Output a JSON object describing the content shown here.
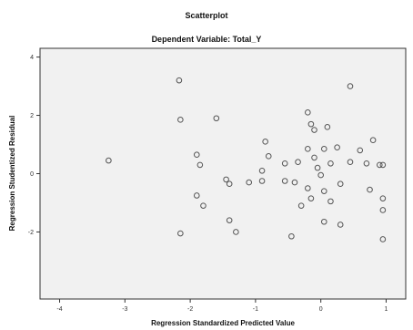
{
  "chart_data": {
    "type": "scatter",
    "title": "Scatterplot",
    "subtitle": "Dependent Variable: Total_Y",
    "xlabel": "Regression Standardized Predicted Value",
    "ylabel": "Regression Studentized Residual",
    "xlim": [
      -4.3,
      1.3
    ],
    "ylim": [
      -4.3,
      4.3
    ],
    "xticks": [
      -4,
      -3,
      -2,
      -1,
      0,
      1
    ],
    "yticks": [
      -2,
      0,
      2,
      4
    ],
    "grid": false,
    "legend": "none",
    "colors": {
      "plot_background": "#f1f1f1",
      "point": "#555555",
      "axis": "#333333"
    },
    "points": [
      {
        "x": -3.25,
        "y": 0.45
      },
      {
        "x": -2.17,
        "y": 3.2
      },
      {
        "x": -2.15,
        "y": 1.85
      },
      {
        "x": -2.15,
        "y": -2.05
      },
      {
        "x": -1.9,
        "y": 0.65
      },
      {
        "x": -1.85,
        "y": 0.3
      },
      {
        "x": -1.9,
        "y": -0.75
      },
      {
        "x": -1.8,
        "y": -1.1
      },
      {
        "x": -1.6,
        "y": 1.9
      },
      {
        "x": -1.45,
        "y": -0.2
      },
      {
        "x": -1.4,
        "y": -0.35
      },
      {
        "x": -1.4,
        "y": -1.6
      },
      {
        "x": -1.3,
        "y": -2.0
      },
      {
        "x": -1.1,
        "y": -0.3
      },
      {
        "x": -0.9,
        "y": 0.1
      },
      {
        "x": -0.85,
        "y": 1.1
      },
      {
        "x": -0.9,
        "y": -0.25
      },
      {
        "x": -0.8,
        "y": 0.6
      },
      {
        "x": -0.55,
        "y": 0.35
      },
      {
        "x": -0.55,
        "y": -0.25
      },
      {
        "x": -0.4,
        "y": -0.3
      },
      {
        "x": -0.35,
        "y": 0.4
      },
      {
        "x": -0.45,
        "y": -2.15
      },
      {
        "x": -0.3,
        "y": -1.1
      },
      {
        "x": -0.2,
        "y": 2.1
      },
      {
        "x": -0.15,
        "y": 1.7
      },
      {
        "x": -0.1,
        "y": 1.5
      },
      {
        "x": -0.2,
        "y": 0.85
      },
      {
        "x": -0.1,
        "y": 0.55
      },
      {
        "x": -0.2,
        "y": -0.5
      },
      {
        "x": -0.15,
        "y": -0.85
      },
      {
        "x": -0.05,
        "y": 0.2
      },
      {
        "x": 0.0,
        "y": -0.05
      },
      {
        "x": 0.05,
        "y": 0.85
      },
      {
        "x": 0.05,
        "y": -0.6
      },
      {
        "x": 0.1,
        "y": 1.6
      },
      {
        "x": 0.15,
        "y": 0.35
      },
      {
        "x": 0.15,
        "y": -0.95
      },
      {
        "x": 0.25,
        "y": 0.9
      },
      {
        "x": 0.3,
        "y": -0.35
      },
      {
        "x": 0.3,
        "y": -1.75
      },
      {
        "x": 0.05,
        "y": -1.65
      },
      {
        "x": 0.45,
        "y": 3.0
      },
      {
        "x": 0.45,
        "y": 0.4
      },
      {
        "x": 0.6,
        "y": 0.8
      },
      {
        "x": 0.7,
        "y": 0.35
      },
      {
        "x": 0.75,
        "y": -0.55
      },
      {
        "x": 0.8,
        "y": 1.15
      },
      {
        "x": 0.9,
        "y": 0.3
      },
      {
        "x": 0.95,
        "y": -0.85
      },
      {
        "x": 0.95,
        "y": 0.3
      },
      {
        "x": 0.95,
        "y": -1.25
      },
      {
        "x": 0.95,
        "y": -2.25
      }
    ]
  }
}
